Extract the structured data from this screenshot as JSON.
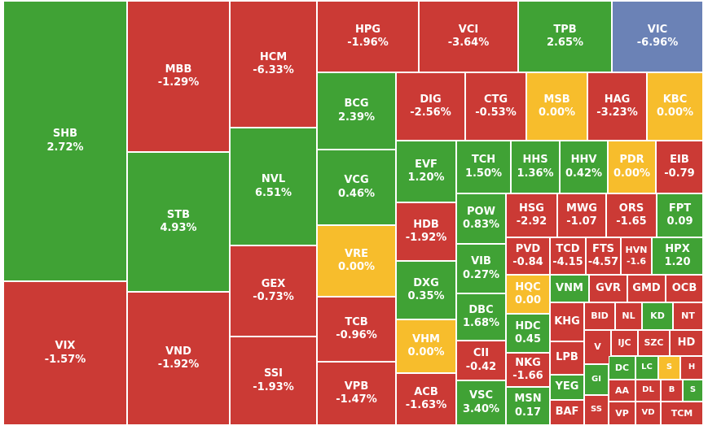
{
  "chart_data": {
    "type": "treemap",
    "title": "",
    "colors": {
      "up": "#40a235",
      "down": "#cb3a35",
      "flat": "#f7bd2c",
      "floor": "#6b82b6"
    },
    "tiles": [
      {
        "symbol": "SHB",
        "change": "2.72%",
        "status": "up"
      },
      {
        "symbol": "VIX",
        "change": "-1.57%",
        "status": "down"
      },
      {
        "symbol": "MBB",
        "change": "-1.29%",
        "status": "down"
      },
      {
        "symbol": "STB",
        "change": "4.93%",
        "status": "up"
      },
      {
        "symbol": "VND",
        "change": "-1.92%",
        "status": "down"
      },
      {
        "symbol": "HCM",
        "change": "-6.33%",
        "status": "down"
      },
      {
        "symbol": "NVL",
        "change": "6.51%",
        "status": "up"
      },
      {
        "symbol": "GEX",
        "change": "-0.73%",
        "status": "down"
      },
      {
        "symbol": "SSI",
        "change": "-1.93%",
        "status": "down"
      },
      {
        "symbol": "HPG",
        "change": "-1.96%",
        "status": "down"
      },
      {
        "symbol": "VCI",
        "change": "-3.64%",
        "status": "down"
      },
      {
        "symbol": "TPB",
        "change": "2.65%",
        "status": "up"
      },
      {
        "symbol": "VIC",
        "change": "-6.96%",
        "status": "floor"
      },
      {
        "symbol": "BCG",
        "change": "2.39%",
        "status": "up"
      },
      {
        "symbol": "VCG",
        "change": "0.46%",
        "status": "up"
      },
      {
        "symbol": "VRE",
        "change": "0.00%",
        "status": "flat"
      },
      {
        "symbol": "TCB",
        "change": "-0.96%",
        "status": "down"
      },
      {
        "symbol": "VPB",
        "change": "-1.47%",
        "status": "down"
      },
      {
        "symbol": "DIG",
        "change": "-2.56%",
        "status": "down"
      },
      {
        "symbol": "CTG",
        "change": "-0.53%",
        "status": "down"
      },
      {
        "symbol": "MSB",
        "change": "0.00%",
        "status": "flat"
      },
      {
        "symbol": "HAG",
        "change": "-3.23%",
        "status": "down"
      },
      {
        "symbol": "KBC",
        "change": "0.00%",
        "status": "flat"
      },
      {
        "symbol": "EVF",
        "change": "1.20%",
        "status": "up"
      },
      {
        "symbol": "HDB",
        "change": "-1.92%",
        "status": "down"
      },
      {
        "symbol": "DXG",
        "change": "0.35%",
        "status": "up"
      },
      {
        "symbol": "VHM",
        "change": "0.00%",
        "status": "flat"
      },
      {
        "symbol": "ACB",
        "change": "-1.63%",
        "status": "down"
      },
      {
        "symbol": "TCH",
        "change": "1.50%",
        "status": "up"
      },
      {
        "symbol": "HHS",
        "change": "1.36%",
        "status": "up"
      },
      {
        "symbol": "HHV",
        "change": "0.42%",
        "status": "up"
      },
      {
        "symbol": "PDR",
        "change": "0.00%",
        "status": "flat"
      },
      {
        "symbol": "EIB",
        "change": "-0.79",
        "status": "down"
      },
      {
        "symbol": "POW",
        "change": "0.83%",
        "status": "up"
      },
      {
        "symbol": "VIB",
        "change": "0.27%",
        "status": "up"
      },
      {
        "symbol": "DBC",
        "change": "1.68%",
        "status": "up"
      },
      {
        "symbol": "CII",
        "change": "-0.42",
        "status": "down"
      },
      {
        "symbol": "VSC",
        "change": "3.40%",
        "status": "up"
      },
      {
        "symbol": "HSG",
        "change": "-2.92",
        "status": "down"
      },
      {
        "symbol": "MWG",
        "change": "-1.07",
        "status": "down"
      },
      {
        "symbol": "ORS",
        "change": "-1.65",
        "status": "down"
      },
      {
        "symbol": "FPT",
        "change": "0.09",
        "status": "up"
      },
      {
        "symbol": "PVD",
        "change": "-0.84",
        "status": "down"
      },
      {
        "symbol": "TCD",
        "change": "-4.15",
        "status": "down"
      },
      {
        "symbol": "FTS",
        "change": "-4.57",
        "status": "down"
      },
      {
        "symbol": "HVN",
        "change": "-1.6",
        "status": "down"
      },
      {
        "symbol": "HPX",
        "change": "1.20",
        "status": "up"
      },
      {
        "symbol": "HQC",
        "change": "0.00",
        "status": "flat"
      },
      {
        "symbol": "HDC",
        "change": "0.45",
        "status": "up"
      },
      {
        "symbol": "NKG",
        "change": "-1.66",
        "status": "down"
      },
      {
        "symbol": "MSN",
        "change": "0.17",
        "status": "up"
      },
      {
        "symbol": "VNM",
        "change": "",
        "status": "up"
      },
      {
        "symbol": "GVR",
        "change": "",
        "status": "down"
      },
      {
        "symbol": "GMD",
        "change": "",
        "status": "down"
      },
      {
        "symbol": "OCB",
        "change": "",
        "status": "down"
      },
      {
        "symbol": "KHG",
        "change": "",
        "status": "down"
      },
      {
        "symbol": "BID",
        "change": "",
        "status": "down"
      },
      {
        "symbol": "NL",
        "change": "",
        "status": "down"
      },
      {
        "symbol": "KD",
        "change": "",
        "status": "up"
      },
      {
        "symbol": "NT",
        "change": "",
        "status": "down"
      },
      {
        "symbol": "LPB",
        "change": "",
        "status": "down"
      },
      {
        "symbol": "V",
        "change": "",
        "status": "down"
      },
      {
        "symbol": "IJC",
        "change": "",
        "status": "down"
      },
      {
        "symbol": "SZC",
        "change": "",
        "status": "down"
      },
      {
        "symbol": "HD",
        "change": "",
        "status": "down"
      },
      {
        "symbol": "YEG",
        "change": "",
        "status": "up"
      },
      {
        "symbol": "GI",
        "change": "",
        "status": "up"
      },
      {
        "symbol": "DC",
        "change": "",
        "status": "up"
      },
      {
        "symbol": "LC",
        "change": "",
        "status": "up"
      },
      {
        "symbol": "S",
        "change": "",
        "status": "flat"
      },
      {
        "symbol": "H",
        "change": "",
        "status": "down"
      },
      {
        "symbol": "AA",
        "change": "",
        "status": "down"
      },
      {
        "symbol": "DL",
        "change": "",
        "status": "down"
      },
      {
        "symbol": "B",
        "change": "",
        "status": "down"
      },
      {
        "symbol": "S",
        "change": "",
        "status": "up"
      },
      {
        "symbol": "BAF",
        "change": "",
        "status": "down"
      },
      {
        "symbol": "SS",
        "change": "",
        "status": "down"
      },
      {
        "symbol": "VP",
        "change": "",
        "status": "down"
      },
      {
        "symbol": "VD",
        "change": "",
        "status": "down"
      },
      {
        "symbol": "TCM",
        "change": "",
        "status": "down"
      }
    ]
  }
}
